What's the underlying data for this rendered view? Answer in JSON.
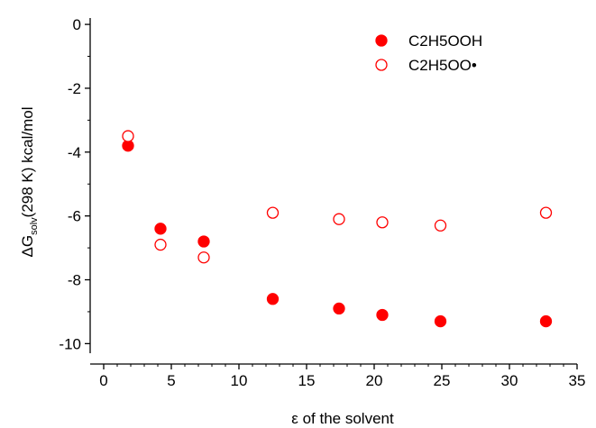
{
  "chart_data": {
    "type": "scatter",
    "xlabel": "ε  of the solvent",
    "ylabel": {
      "prefix": "ΔG",
      "subscript": "solv",
      "suffix": "(298 K) kcal/mol"
    },
    "xlim": [
      -1,
      35
    ],
    "ylim": [
      -10.3,
      0.2
    ],
    "xticks": [
      0,
      5,
      10,
      15,
      20,
      25,
      30,
      35
    ],
    "yticks": [
      0,
      -2,
      -4,
      -6,
      -8,
      -10
    ],
    "xtick_labels": [
      "0",
      "5",
      "10",
      "15",
      "20",
      "25",
      "30",
      "35"
    ],
    "ytick_labels": [
      "0",
      "-2",
      "-4",
      "-6",
      "-8",
      "-10"
    ],
    "grid": false,
    "legend_position": "top-right",
    "series": [
      {
        "name": "C2H5OOH",
        "marker": "filled-circle",
        "color": "#ff0000",
        "x": [
          1.8,
          4.2,
          7.4,
          12.5,
          17.4,
          20.6,
          24.9,
          32.7
        ],
        "y": [
          -3.8,
          -6.4,
          -6.8,
          -8.6,
          -8.9,
          -9.1,
          -9.3,
          -9.3
        ]
      },
      {
        "name": "C2H5OO•",
        "marker": "open-circle",
        "color": "#ff0000",
        "x": [
          1.8,
          4.2,
          7.4,
          12.5,
          17.4,
          20.6,
          24.9,
          32.7
        ],
        "y": [
          -3.5,
          -6.9,
          -7.3,
          -5.9,
          -6.1,
          -6.2,
          -6.3,
          -5.9
        ]
      }
    ]
  }
}
